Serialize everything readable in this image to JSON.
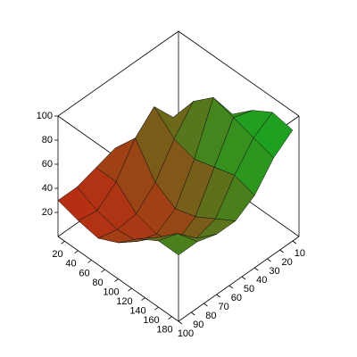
{
  "chart_data": {
    "type": "surface",
    "x": [
      10,
      40,
      70,
      100,
      130,
      160,
      190
    ],
    "y": [
      10,
      25,
      40,
      55,
      70,
      85,
      100
    ],
    "z": [
      [
        25,
        30,
        35,
        40,
        35,
        30,
        30
      ],
      [
        35,
        55,
        75,
        60,
        35,
        22,
        25
      ],
      [
        50,
        80,
        60,
        35,
        20,
        18,
        22
      ],
      [
        70,
        95,
        55,
        25,
        15,
        20,
        30
      ],
      [
        85,
        90,
        60,
        30,
        20,
        35,
        45
      ],
      [
        95,
        85,
        65,
        40,
        35,
        50,
        55
      ],
      [
        92,
        80,
        60,
        50,
        50,
        55,
        55
      ]
    ],
    "xlim": [
      10,
      190
    ],
    "ylim": [
      5,
      100
    ],
    "zlim": [
      0,
      100
    ],
    "xticks": [
      20,
      40,
      60,
      80,
      100,
      120,
      140,
      160,
      180
    ],
    "yticks": [
      10,
      20,
      30,
      40,
      50,
      60,
      70,
      80,
      90,
      100
    ],
    "zticks": [
      20,
      40,
      60,
      80,
      100
    ],
    "colors": [
      "#e01010",
      "#20a020"
    ]
  }
}
